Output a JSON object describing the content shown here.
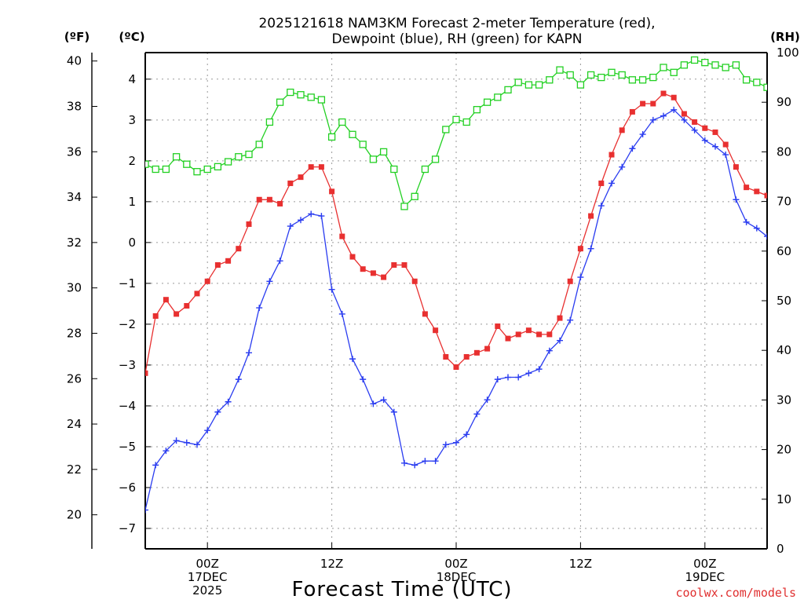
{
  "chart_data": {
    "type": "line",
    "title": [
      "2025121618 NAM3KM Forecast 2-meter Temperature (red),",
      "Dewpoint (blue), RH (green) for KAPN"
    ],
    "units": {
      "fahrenheit": "(ºF)",
      "celsius": "(ºC)",
      "rh": "(RH)"
    },
    "xlabel": "Forecast Time (UTC)",
    "credit": "coolwx.com/models",
    "x_ticks": [
      {
        "hour": 6,
        "lines": [
          "00Z",
          "17DEC",
          "2025"
        ]
      },
      {
        "hour": 18,
        "lines": [
          "12Z"
        ]
      },
      {
        "hour": 30,
        "lines": [
          "00Z",
          "18DEC"
        ]
      },
      {
        "hour": 42,
        "lines": [
          "12Z"
        ]
      },
      {
        "hour": 54,
        "lines": [
          "00Z",
          "19DEC"
        ]
      }
    ],
    "xlim": [
      0,
      60
    ],
    "ylim_celsius": [
      -7.5,
      4.65
    ],
    "yticks_celsius": [
      -7,
      -6,
      -5,
      -4,
      -3,
      -2,
      -1,
      0,
      1,
      2,
      3,
      4
    ],
    "yticks_fahrenheit": [
      20,
      22,
      24,
      26,
      28,
      30,
      32,
      34,
      36,
      38,
      40
    ],
    "ylim_rh": [
      0,
      100
    ],
    "yticks_rh": [
      0,
      10,
      20,
      30,
      40,
      50,
      60,
      70,
      80,
      90,
      100
    ],
    "grid": true,
    "series": [
      {
        "name": "Temperature",
        "axis": "celsius",
        "color": "#e83030",
        "marker": "filled-square",
        "values": [
          -3.2,
          -1.8,
          -1.4,
          -1.75,
          -1.55,
          -1.25,
          -0.95,
          -0.55,
          -0.45,
          -0.15,
          0.45,
          1.05,
          1.05,
          0.95,
          1.45,
          1.6,
          1.85,
          1.85,
          1.25,
          0.15,
          -0.35,
          -0.65,
          -0.75,
          -0.85,
          -0.55,
          -0.55,
          -0.95,
          -1.75,
          -2.15,
          -2.8,
          -3.05,
          -2.8,
          -2.7,
          -2.6,
          -2.05,
          -2.35,
          -2.25,
          -2.15,
          -2.25,
          -2.25,
          -1.85,
          -0.95,
          -0.15,
          0.65,
          1.45,
          2.15,
          2.75,
          3.2,
          3.4,
          3.4,
          3.65,
          3.55,
          3.15,
          2.95,
          2.8,
          2.7,
          2.4,
          1.85,
          1.35,
          1.25,
          1.15
        ]
      },
      {
        "name": "Dewpoint",
        "axis": "celsius",
        "color": "#2a3cf0",
        "marker": "plus",
        "values": [
          -6.55,
          -5.45,
          -5.1,
          -4.85,
          -4.9,
          -4.95,
          -4.6,
          -4.15,
          -3.9,
          -3.35,
          -2.7,
          -1.6,
          -0.95,
          -0.45,
          0.4,
          0.55,
          0.7,
          0.65,
          -1.15,
          -1.75,
          -2.85,
          -3.35,
          -3.95,
          -3.85,
          -4.15,
          -5.4,
          -5.45,
          -5.35,
          -5.35,
          -4.95,
          -4.9,
          -4.7,
          -4.2,
          -3.85,
          -3.35,
          -3.3,
          -3.3,
          -3.2,
          -3.1,
          -2.65,
          -2.4,
          -1.9,
          -0.85,
          -0.15,
          0.9,
          1.45,
          1.85,
          2.3,
          2.65,
          3.0,
          3.1,
          3.25,
          3.0,
          2.75,
          2.5,
          2.35,
          2.15,
          1.05,
          0.5,
          0.35,
          0.15
        ]
      },
      {
        "name": "RH",
        "axis": "rh",
        "color": "#22d022",
        "marker": "open-square",
        "values": [
          77.5,
          76.5,
          76.5,
          79,
          77.5,
          76,
          76.5,
          77,
          78,
          79,
          79.5,
          81.5,
          86,
          90,
          92,
          91.5,
          91,
          90.5,
          83,
          86,
          83.5,
          81.5,
          78.5,
          80,
          76.5,
          69,
          71,
          76.5,
          78.5,
          84.5,
          86.5,
          86,
          88.5,
          90,
          91,
          92.5,
          94,
          93.5,
          93.5,
          94.5,
          96.5,
          95.5,
          93.5,
          95.5,
          95,
          96,
          95.5,
          94.5,
          94.5,
          95,
          97,
          96,
          97.5,
          98.5,
          98,
          97.5,
          97,
          97.5,
          94.5,
          94,
          93
        ]
      }
    ]
  }
}
